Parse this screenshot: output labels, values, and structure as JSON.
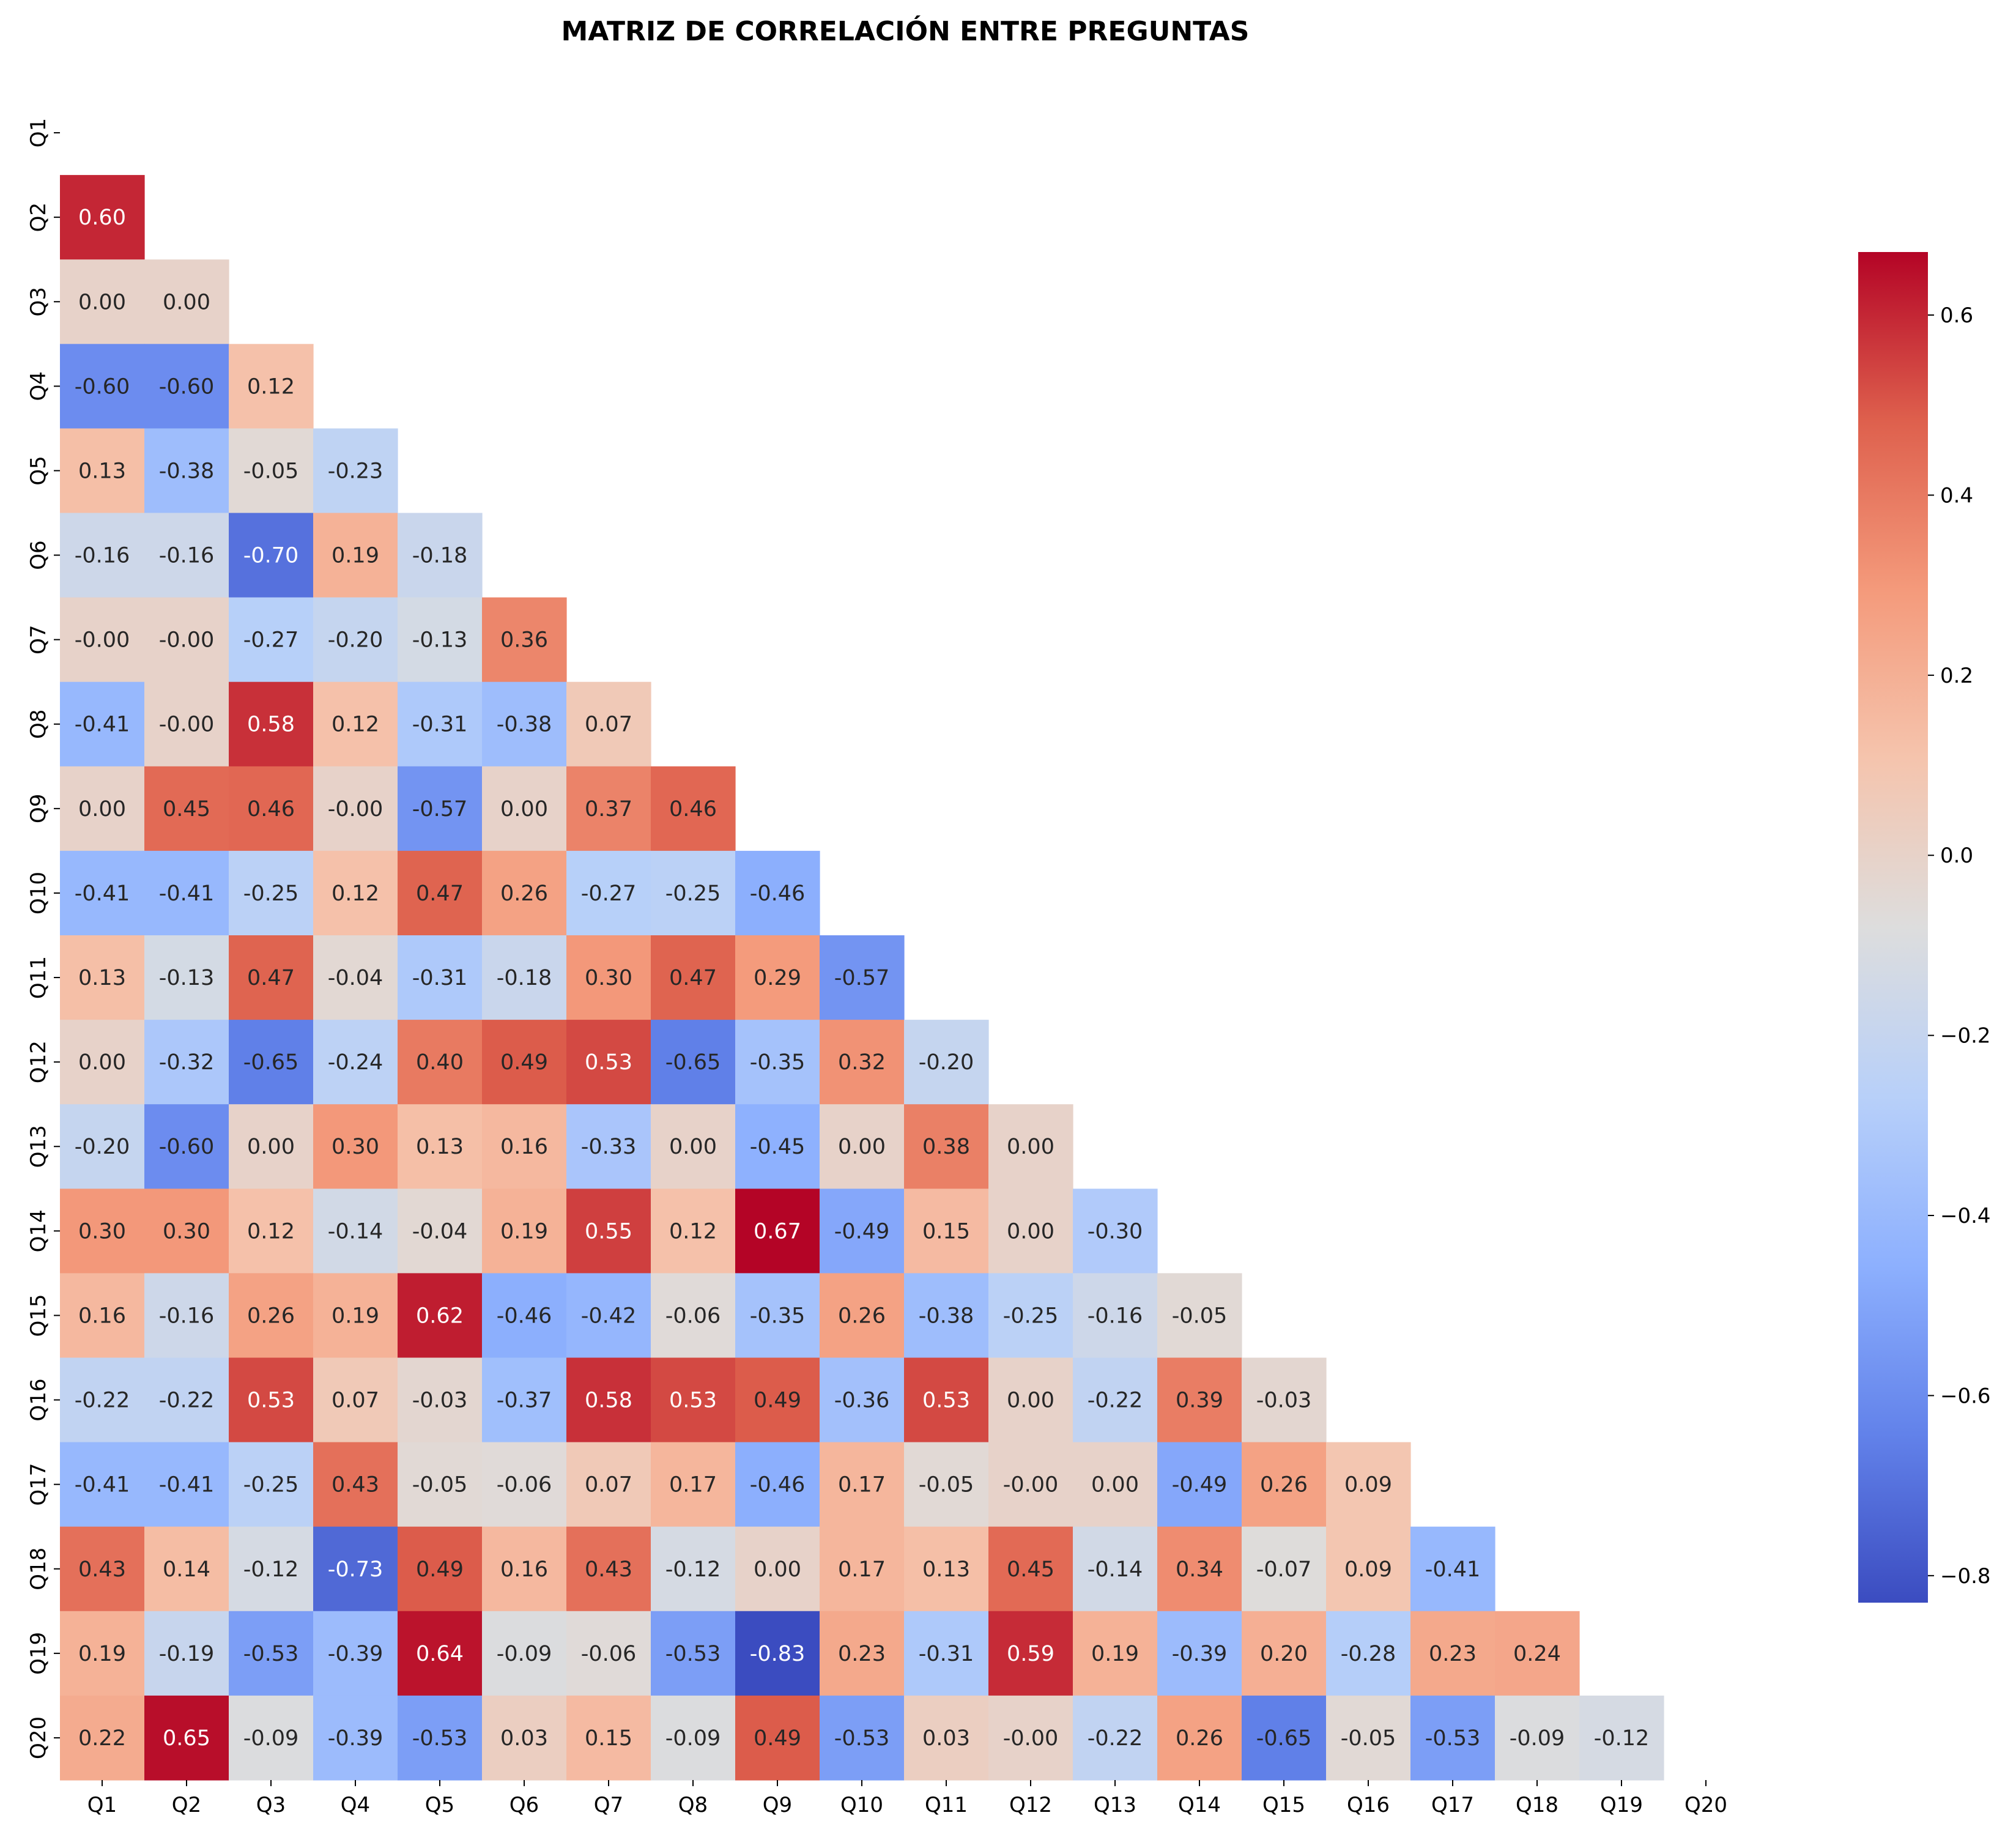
{
  "chart_data": {
    "type": "heatmap",
    "title": "MATRIZ DE CORRELACIÓN ENTRE PREGUNTAS",
    "xlabel": "",
    "ylabel": "",
    "x_categories": [
      "Q1",
      "Q2",
      "Q3",
      "Q4",
      "Q5",
      "Q6",
      "Q7",
      "Q8",
      "Q9",
      "Q10",
      "Q11",
      "Q12",
      "Q13",
      "Q14",
      "Q15",
      "Q16",
      "Q17",
      "Q18",
      "Q19",
      "Q20"
    ],
    "y_categories": [
      "Q1",
      "Q2",
      "Q3",
      "Q4",
      "Q5",
      "Q6",
      "Q7",
      "Q8",
      "Q9",
      "Q10",
      "Q11",
      "Q12",
      "Q13",
      "Q14",
      "Q15",
      "Q16",
      "Q17",
      "Q18",
      "Q19",
      "Q20"
    ],
    "mask": "upper-triangle-including-diagonal",
    "colormap": "coolwarm",
    "vmin": -0.83,
    "vmax": 0.67,
    "colorbar_ticks": [
      "0.6",
      "0.4",
      "0.2",
      "0.0",
      "−0.2",
      "−0.4",
      "−0.6",
      "−0.8"
    ],
    "colorbar_tick_values": [
      0.6,
      0.4,
      0.2,
      0.0,
      -0.2,
      -0.4,
      -0.6,
      -0.8
    ],
    "rows": [
      [],
      [
        "0.60"
      ],
      [
        "0.00",
        "0.00"
      ],
      [
        "-0.60",
        "-0.60",
        "0.12"
      ],
      [
        "0.13",
        "-0.38",
        "-0.05",
        "-0.23"
      ],
      [
        "-0.16",
        "-0.16",
        "-0.70",
        "0.19",
        "-0.18"
      ],
      [
        "-0.00",
        "-0.00",
        "-0.27",
        "-0.20",
        "-0.13",
        "0.36"
      ],
      [
        "-0.41",
        "-0.00",
        "0.58",
        "0.12",
        "-0.31",
        "-0.38",
        "0.07"
      ],
      [
        "0.00",
        "0.45",
        "0.46",
        "-0.00",
        "-0.57",
        "0.00",
        "0.37",
        "0.46"
      ],
      [
        "-0.41",
        "-0.41",
        "-0.25",
        "0.12",
        "0.47",
        "0.26",
        "-0.27",
        "-0.25",
        "-0.46"
      ],
      [
        "0.13",
        "-0.13",
        "0.47",
        "-0.04",
        "-0.31",
        "-0.18",
        "0.30",
        "0.47",
        "0.29",
        "-0.57"
      ],
      [
        "0.00",
        "-0.32",
        "-0.65",
        "-0.24",
        "0.40",
        "0.49",
        "0.53",
        "-0.65",
        "-0.35",
        "0.32",
        "-0.20"
      ],
      [
        "-0.20",
        "-0.60",
        "0.00",
        "0.30",
        "0.13",
        "0.16",
        "-0.33",
        "0.00",
        "-0.45",
        "0.00",
        "0.38",
        "0.00"
      ],
      [
        "0.30",
        "0.30",
        "0.12",
        "-0.14",
        "-0.04",
        "0.19",
        "0.55",
        "0.12",
        "0.67",
        "-0.49",
        "0.15",
        "0.00",
        "-0.30"
      ],
      [
        "0.16",
        "-0.16",
        "0.26",
        "0.19",
        "0.62",
        "-0.46",
        "-0.42",
        "-0.06",
        "-0.35",
        "0.26",
        "-0.38",
        "-0.25",
        "-0.16",
        "-0.05"
      ],
      [
        "-0.22",
        "-0.22",
        "0.53",
        "0.07",
        "-0.03",
        "-0.37",
        "0.58",
        "0.53",
        "0.49",
        "-0.36",
        "0.53",
        "0.00",
        "-0.22",
        "0.39",
        "-0.03"
      ],
      [
        "-0.41",
        "-0.41",
        "-0.25",
        "0.43",
        "-0.05",
        "-0.06",
        "0.07",
        "0.17",
        "-0.46",
        "0.17",
        "-0.05",
        "-0.00",
        "0.00",
        "-0.49",
        "0.26",
        "0.09"
      ],
      [
        "0.43",
        "0.14",
        "-0.12",
        "-0.73",
        "0.49",
        "0.16",
        "0.43",
        "-0.12",
        "0.00",
        "0.17",
        "0.13",
        "0.45",
        "-0.14",
        "0.34",
        "-0.07",
        "0.09",
        "-0.41"
      ],
      [
        "0.19",
        "-0.19",
        "-0.53",
        "-0.39",
        "0.64",
        "-0.09",
        "-0.06",
        "-0.53",
        "-0.83",
        "0.23",
        "-0.31",
        "0.59",
        "0.19",
        "-0.39",
        "0.20",
        "-0.28",
        "0.23",
        "0.24"
      ],
      [
        "0.22",
        "0.65",
        "-0.09",
        "-0.39",
        "-0.53",
        "0.03",
        "0.15",
        "-0.09",
        "0.49",
        "-0.53",
        "0.03",
        "-0.00",
        "-0.22",
        "0.26",
        "-0.65",
        "-0.05",
        "-0.53",
        "-0.09",
        "-0.12"
      ]
    ]
  }
}
